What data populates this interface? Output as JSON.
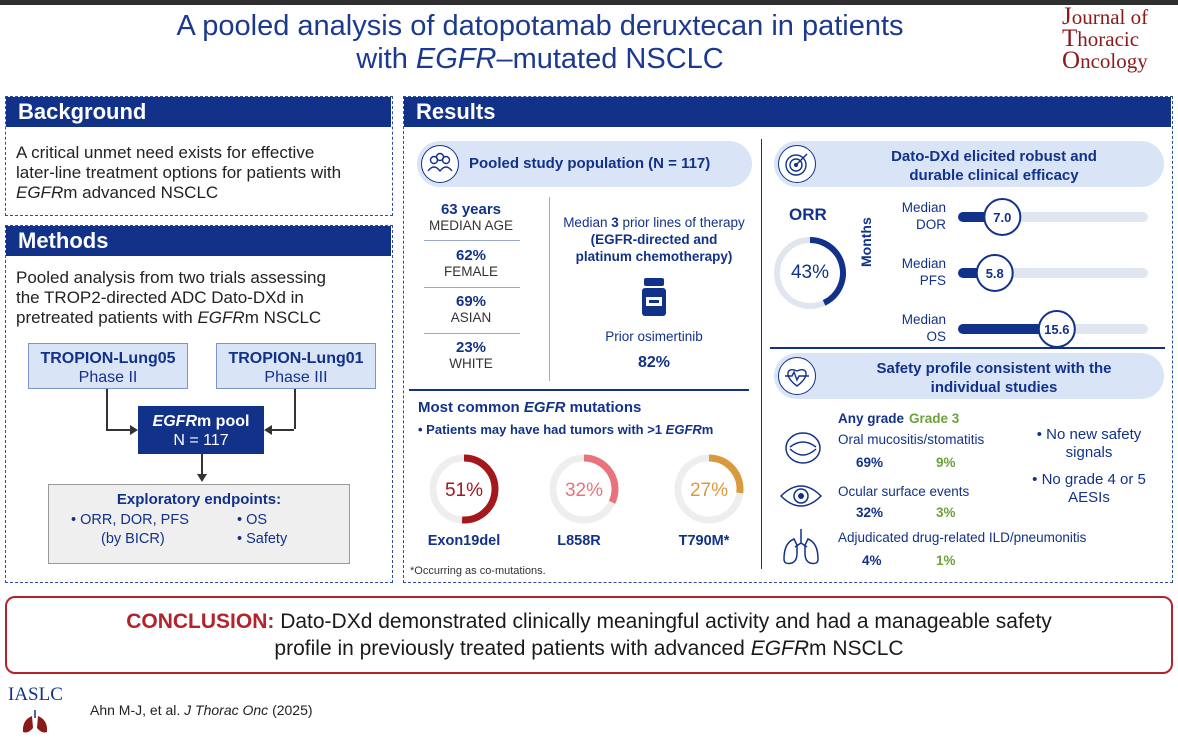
{
  "title": {
    "line1": "A pooled analysis of datopotamab deruxtecan in patients",
    "line2_prefix": "with ",
    "line2_italic": "EGFR",
    "line2_suffix": "–mutated NSCLC"
  },
  "journal": {
    "line1_big": "J",
    "line1": "ournal of",
    "line2_big": "T",
    "line2": "horacic",
    "line3_big": "O",
    "line3": "ncology"
  },
  "background": {
    "heading": "Background",
    "text_line1": "A critical unmet need exists for effective",
    "text_line2": "later-line treatment options for patients with",
    "text_line3_italic": "EGFR",
    "text_line3": "m advanced NSCLC"
  },
  "methods": {
    "heading": "Methods",
    "text_line1": "Pooled analysis from two trials assessing",
    "text_line2": "the TROP2-directed ADC Dato-DXd in",
    "text_line3": "pretreated patients with ",
    "text_line3_italic": "EGFR",
    "text_line3_end": "m NSCLC",
    "trial1_name": "TROPION-Lung05",
    "trial1_phase": "Phase II",
    "trial2_name": "TROPION-Lung01",
    "trial2_phase": "Phase III",
    "pool_italic": "EGFR",
    "pool_label": "m pool",
    "pool_n": "N = 117",
    "endpoints_title": "Exploratory endpoints:",
    "endpoint1": "• ORR, DOR, PFS",
    "endpoint1_sub": "(by BICR)",
    "endpoint2": "• OS",
    "endpoint3": "• Safety"
  },
  "results": {
    "heading": "Results",
    "population": {
      "heading": "Pooled study population (N = 117)",
      "stats": [
        {
          "value": "63 years",
          "label": "MEDIAN AGE"
        },
        {
          "value": "62%",
          "label": "FEMALE"
        },
        {
          "value": "69%",
          "label": "ASIAN"
        },
        {
          "value": "23%",
          "label": "WHITE"
        }
      ],
      "prior_line1_pre": "Median ",
      "prior_line1_num": "3",
      "prior_line1_post": " prior lines of therapy",
      "prior_line2": "(EGFR-directed and",
      "prior_line3": "platinum chemotherapy)",
      "osimertinib_label": "Prior osimertinib",
      "osimertinib_value": "82%"
    },
    "mutations": {
      "heading_pre": "Most common ",
      "heading_italic": "EGFR",
      "heading_post": " mutations",
      "note_pre": "• Patients may have had tumors with >1 ",
      "note_italic": "EGFR",
      "note_post": "m",
      "items": [
        {
          "value": "51%",
          "pct": 51,
          "label": "Exon19del",
          "color": "#a3171d"
        },
        {
          "value": "32%",
          "pct": 32,
          "label": "L858R",
          "color": "#e8737a"
        },
        {
          "value": "27%",
          "pct": 27,
          "label": "T790M*",
          "color": "#d99a3e"
        }
      ],
      "footnote": "*Occurring as co-mutations."
    },
    "efficacy": {
      "heading_line1": "Dato-DXd elicited robust and",
      "heading_line2": "durable clinical efficacy",
      "orr_label": "ORR",
      "orr_value": "43%",
      "orr_pct": 43,
      "months_label": "Months",
      "bars": [
        {
          "label1": "Median",
          "label2": "DOR",
          "value": "7.0",
          "months": 7.0
        },
        {
          "label1": "Median",
          "label2": "PFS",
          "value": "5.8",
          "months": 5.8
        },
        {
          "label1": "Median",
          "label2": "OS",
          "value": "15.6",
          "months": 15.6
        }
      ]
    },
    "safety": {
      "heading_line1": "Safety profile consistent with the",
      "heading_line2": "individual studies",
      "col_any": "Any grade",
      "col_g3": "Grade 3",
      "events": [
        {
          "name": "Oral mucositis/stomatitis",
          "any": "69%",
          "g3": "9%"
        },
        {
          "name": "Ocular surface events",
          "any": "32%",
          "g3": "3%"
        },
        {
          "name": "Adjudicated drug-related ILD/pneumonitis",
          "any": "4%",
          "g3": "1%"
        }
      ],
      "bullet1_line1": "• No new safety",
      "bullet1_line2": "signals",
      "bullet2_line1": "• No grade 4 or 5",
      "bullet2_line2": "AESIs"
    }
  },
  "conclusion": {
    "label": "CONCLUSION:",
    "text_line1": " Dato-DXd demonstrated clinically meaningful activity and had a manageable safety",
    "text_line2_pre": "profile in previously treated patients with advanced ",
    "text_line2_italic": "EGFR",
    "text_line2_post": "m NSCLC"
  },
  "footer": {
    "logo": "IASLC",
    "citation_pre": "Ahn M-J, et al. ",
    "citation_italic": "J Thorac Onc",
    "citation_post": " (2025)"
  },
  "colors": {
    "navy": "#12328a",
    "red": "#b3232b",
    "green": "#6ba33a"
  }
}
